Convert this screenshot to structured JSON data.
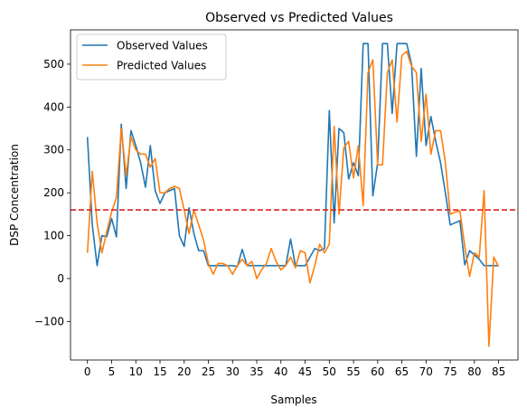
{
  "chart_data": {
    "type": "line",
    "title": "Observed vs Predicted Values",
    "xlabel": "Samples",
    "ylabel": "DSP Concentration",
    "xlim": [
      -3.5,
      89
    ],
    "ylim": [
      -190,
      580
    ],
    "xticks": [
      0,
      5,
      10,
      15,
      20,
      25,
      30,
      35,
      40,
      45,
      50,
      55,
      60,
      65,
      70,
      75,
      80,
      85
    ],
    "yticks": [
      -100,
      0,
      100,
      200,
      300,
      400,
      500
    ],
    "grid": false,
    "legend_position": "top-left",
    "threshold": {
      "value": 160,
      "color": "#d62728",
      "style": "dashed"
    },
    "x": [
      0,
      1,
      2,
      3,
      4,
      5,
      6,
      7,
      8,
      9,
      10,
      11,
      12,
      13,
      14,
      15,
      16,
      17,
      18,
      19,
      20,
      21,
      22,
      23,
      24,
      25,
      26,
      27,
      28,
      29,
      30,
      31,
      32,
      33,
      34,
      35,
      36,
      37,
      38,
      39,
      40,
      41,
      42,
      43,
      44,
      45,
      46,
      47,
      48,
      49,
      50,
      51,
      52,
      53,
      54,
      55,
      56,
      57,
      58,
      59,
      60,
      61,
      62,
      63,
      64,
      65,
      66,
      67,
      68,
      69,
      70,
      71,
      72,
      73,
      74,
      75,
      76,
      77,
      78,
      79,
      80,
      81,
      82,
      83,
      84,
      85
    ],
    "series": [
      {
        "name": "Observed Values",
        "color": "#1f77b4",
        "values": [
          330,
          125,
          30,
          100,
          98,
          140,
          97,
          360,
          210,
          345,
          310,
          270,
          213,
          310,
          205,
          175,
          200,
          205,
          210,
          100,
          75,
          165,
          105,
          65,
          65,
          30,
          30,
          30,
          30,
          30,
          30,
          28,
          68,
          30,
          30,
          30,
          30,
          30,
          30,
          30,
          30,
          30,
          92,
          30,
          30,
          30,
          50,
          70,
          65,
          70,
          392,
          130,
          350,
          340,
          232,
          270,
          240,
          548,
          548,
          193,
          270,
          548,
          548,
          385,
          548,
          548,
          548,
          500,
          285,
          490,
          310,
          378,
          320,
          270,
          200,
          125,
          130,
          135,
          32,
          65,
          55,
          45,
          30,
          30,
          30,
          30
        ]
      },
      {
        "name": "Predicted Values",
        "color": "#ff7f0e",
        "values": [
          60,
          250,
          130,
          60,
          110,
          155,
          190,
          350,
          240,
          330,
          300,
          290,
          290,
          260,
          280,
          200,
          200,
          210,
          215,
          210,
          160,
          105,
          160,
          125,
          90,
          35,
          10,
          35,
          35,
          30,
          10,
          30,
          45,
          30,
          40,
          0,
          20,
          35,
          70,
          40,
          20,
          30,
          50,
          25,
          65,
          60,
          -10,
          30,
          80,
          60,
          80,
          355,
          150,
          305,
          320,
          235,
          310,
          170,
          480,
          510,
          265,
          265,
          480,
          510,
          365,
          520,
          530,
          495,
          480,
          320,
          430,
          290,
          345,
          345,
          270,
          150,
          155,
          158,
          75,
          5,
          60,
          50,
          205,
          -158,
          50,
          28
        ]
      }
    ]
  }
}
